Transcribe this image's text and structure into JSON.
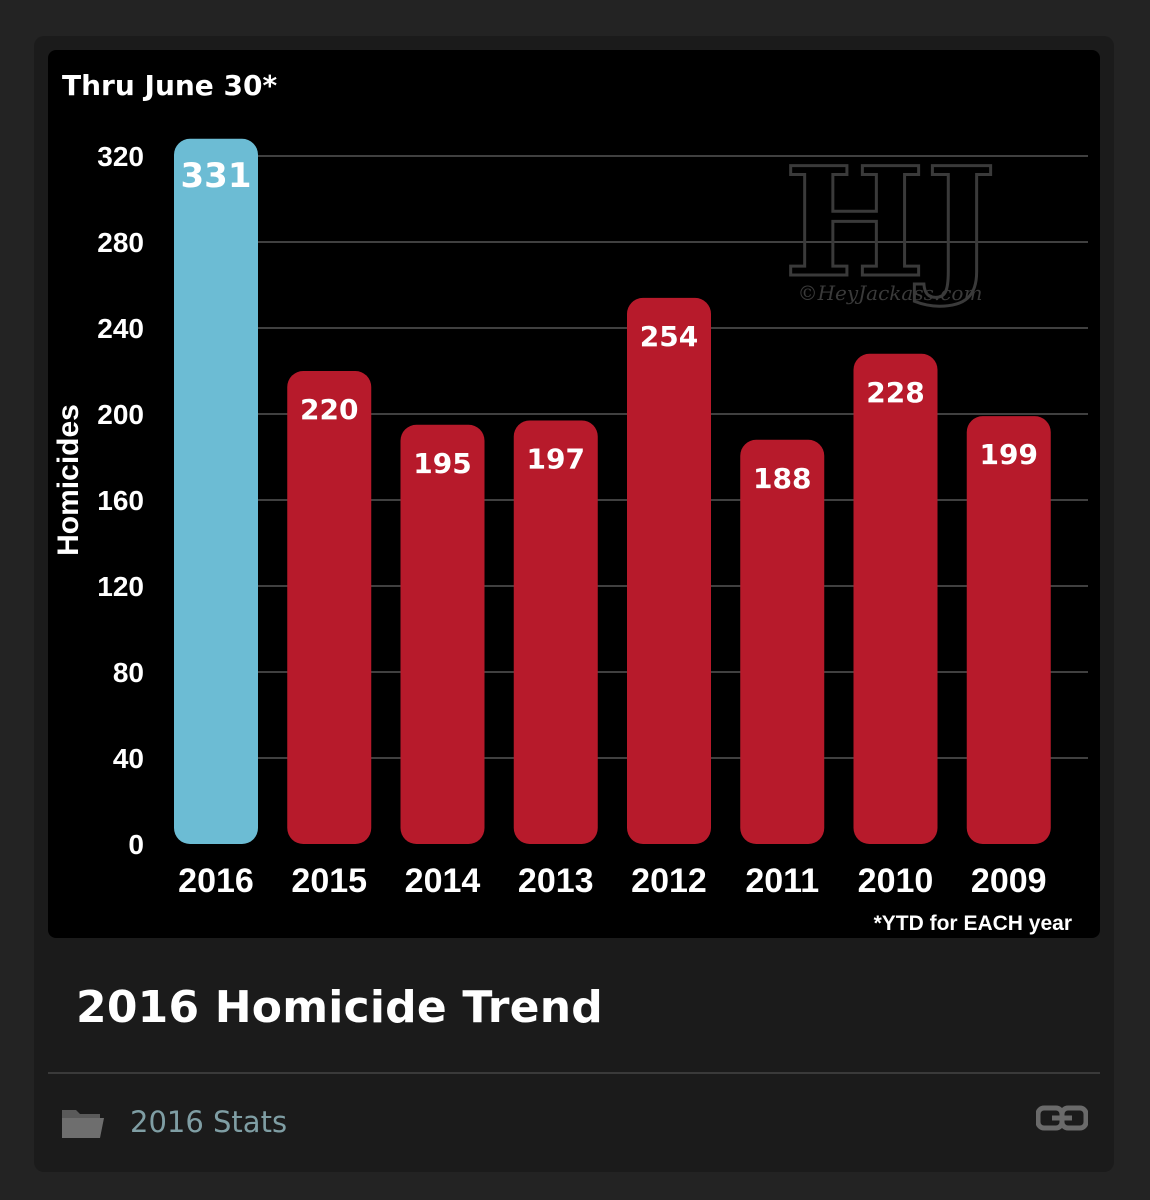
{
  "post": {
    "title": "2016 Homicide Trend",
    "category_label": "2016 Stats",
    "category_icon": "folder-icon",
    "link_icon": "link-icon"
  },
  "chart_data": {
    "type": "bar",
    "title": "Thru June 30*",
    "ylabel": "Homicides",
    "xlabel": "",
    "categories": [
      "2016",
      "2015",
      "2014",
      "2013",
      "2012",
      "2011",
      "2010",
      "2009"
    ],
    "values": [
      331,
      220,
      195,
      197,
      254,
      188,
      228,
      199
    ],
    "data_labels": [
      "331",
      "220",
      "195",
      "197",
      "254",
      "188",
      "228",
      "199"
    ],
    "yticks": [
      0,
      40,
      80,
      120,
      160,
      200,
      240,
      280,
      320
    ],
    "ylim": [
      0,
      320
    ],
    "grid": true,
    "footnote": "*YTD for EACH year",
    "watermark": {
      "logo_text": "HJ",
      "text": "©HeyJackass.com"
    },
    "colors": {
      "highlight": "#6cbcd4",
      "bar": "#b71a2b",
      "background": "#000000",
      "grid": "#555555",
      "text": "#ffffff"
    }
  }
}
